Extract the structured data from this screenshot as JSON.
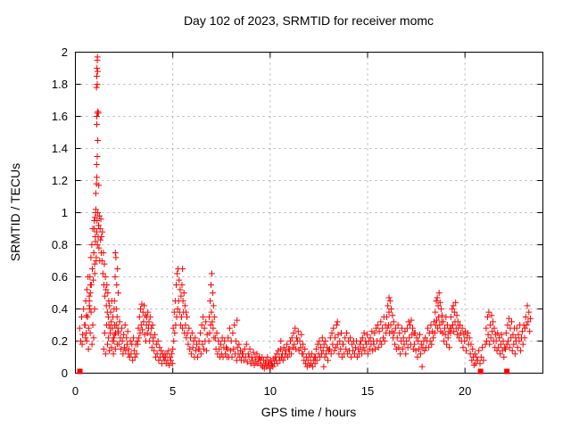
{
  "chart_data": {
    "type": "scatter",
    "title": "Day 102 of 2023, SRMTID for receiver momc",
    "xlabel": "GPS time / hours",
    "ylabel": "SRMTID / TECUs",
    "xlim": [
      0,
      24
    ],
    "ylim": [
      0,
      2
    ],
    "grid": "dashed",
    "legend": "none",
    "marker": "plus",
    "marker_color": "#ff0000",
    "grid_color": "#b0b0b0",
    "axis_color": "#000000",
    "background": "#ffffff",
    "x_ticks": {
      "values": [
        0,
        5,
        10,
        15,
        20
      ],
      "labels": [
        "0",
        "5",
        "10",
        "15",
        "20"
      ]
    },
    "y_ticks": {
      "values": [
        0,
        0.2,
        0.4,
        0.6,
        0.8,
        1,
        1.2,
        1.4,
        1.6,
        1.8,
        2
      ],
      "labels": [
        "0",
        "0.2",
        "0.4",
        "0.6",
        "0.8",
        "1",
        "1.2",
        "1.4",
        "1.6",
        "1.8",
        "2"
      ]
    },
    "runs": [
      {
        "x0": 0.22,
        "dx": 0.05,
        "y": [
          0.28,
          0.2,
          0.35,
          0.24,
          0.4,
          0.3,
          0.22,
          0.36
        ]
      },
      {
        "x0": 0.5,
        "dx": 0.03,
        "y": [
          0.3,
          0.45,
          0.25,
          0.52,
          0.35,
          0.6,
          0.28,
          0.48,
          0.4,
          0.55
        ]
      },
      {
        "x0": 0.58,
        "dx": 0.045,
        "y": [
          0.2,
          0.35,
          0.15,
          0.42,
          0.25,
          0.38,
          0.18,
          0.3,
          0.22,
          0.4
        ]
      },
      {
        "x0": 0.72,
        "dx": 0.025,
        "y": [
          0.45,
          0.6,
          0.5,
          0.72,
          0.55,
          0.8,
          0.65,
          0.9,
          0.58,
          0.75,
          0.95,
          0.62,
          0.85,
          1.0,
          0.7,
          0.88
        ]
      },
      {
        "x0": 0.95,
        "dx": 0.02,
        "y": [
          0.75,
          0.9,
          0.68,
          0.97,
          0.82,
          1.02,
          0.72,
          0.88,
          0.95,
          0.8,
          1.0,
          0.85,
          0.92,
          0.78,
          0.98,
          0.7,
          0.9,
          0.83,
          0.96,
          0.75
        ]
      },
      {
        "x0": 1.34,
        "dx": 0.025,
        "y": [
          0.85,
          0.7,
          0.88,
          0.62,
          0.75,
          0.55,
          0.68,
          0.48,
          0.6,
          0.52,
          0.42,
          0.55,
          0.38,
          0.5,
          0.35,
          0.45
        ]
      },
      {
        "x0": 1.45,
        "dx": 0.05,
        "y": [
          0.15,
          0.25,
          0.12,
          0.3,
          0.18,
          0.22,
          0.14,
          0.28,
          0.16,
          0.2,
          0.12,
          0.24,
          0.15,
          0.3,
          0.18,
          0.26
        ]
      },
      {
        "x0": 1.72,
        "dx": 0.03,
        "y": [
          0.3,
          0.42,
          0.25,
          0.38,
          0.32,
          0.45,
          0.28,
          0.35,
          0.22,
          0.4
        ]
      },
      {
        "x0": 1.98,
        "dx": 0.02,
        "y": [
          0.2,
          0.45,
          0.3,
          0.6,
          0.25,
          0.72,
          0.4,
          0.55,
          0.35,
          0.65,
          0.28,
          0.5
        ]
      },
      {
        "x0": 2.2,
        "dx": 0.035,
        "y": [
          0.25,
          0.18,
          0.32,
          0.22,
          0.15,
          0.28,
          0.2,
          0.12,
          0.24,
          0.16,
          0.3,
          0.14,
          0.22,
          0.18,
          0.26,
          0.12
        ]
      },
      {
        "x0": 2.74,
        "dx": 0.04,
        "y": [
          0.15,
          0.1,
          0.2,
          0.12,
          0.18,
          0.08,
          0.22,
          0.14,
          0.1,
          0.18,
          0.12,
          0.2
        ]
      },
      {
        "x0": 3.2,
        "dx": 0.03,
        "y": [
          0.18,
          0.28,
          0.22,
          0.35,
          0.25,
          0.4,
          0.3,
          0.43,
          0.27,
          0.38,
          0.32,
          0.42,
          0.24,
          0.36,
          0.2,
          0.3
        ]
      },
      {
        "x0": 3.66,
        "dx": 0.03,
        "y": [
          0.35,
          0.25,
          0.38,
          0.28,
          0.32,
          0.2,
          0.35,
          0.24,
          0.28,
          0.16,
          0.3,
          0.22
        ]
      },
      {
        "x0": 4.0,
        "dx": 0.04,
        "y": [
          0.2,
          0.14,
          0.24,
          0.1,
          0.18,
          0.12,
          0.2,
          0.08,
          0.16,
          0.1,
          0.14,
          0.06,
          0.12,
          0.1,
          0.08,
          0.12
        ]
      },
      {
        "x0": 4.62,
        "dx": 0.04,
        "y": [
          0.1,
          0.06,
          0.12,
          0.08,
          0.14,
          0.05,
          0.1,
          0.08,
          0.12,
          0.06
        ]
      },
      {
        "x0": 5.0,
        "dx": 0.025,
        "y": [
          0.15,
          0.28,
          0.2,
          0.38,
          0.25,
          0.45,
          0.3,
          0.55,
          0.35,
          0.62,
          0.4,
          0.65,
          0.45,
          0.58,
          0.38,
          0.52
        ]
      },
      {
        "x0": 5.4,
        "dx": 0.025,
        "y": [
          0.3,
          0.48,
          0.35,
          0.55,
          0.28,
          0.45,
          0.38,
          0.5,
          0.25,
          0.42,
          0.3,
          0.38,
          0.22,
          0.35
        ]
      },
      {
        "x0": 5.75,
        "dx": 0.04,
        "y": [
          0.25,
          0.18,
          0.28,
          0.15,
          0.22,
          0.12,
          0.25,
          0.16,
          0.2,
          0.1,
          0.22,
          0.14,
          0.18,
          0.1,
          0.15,
          0.2
        ]
      },
      {
        "x0": 6.38,
        "dx": 0.035,
        "y": [
          0.15,
          0.25,
          0.12,
          0.3,
          0.18,
          0.35,
          0.15,
          0.28,
          0.2,
          0.32,
          0.14,
          0.24
        ]
      },
      {
        "x0": 6.85,
        "dx": 0.022,
        "y": [
          0.2,
          0.35,
          0.25,
          0.45,
          0.3,
          0.55,
          0.38,
          0.62,
          0.32,
          0.5,
          0.28,
          0.42,
          0.22,
          0.35
        ]
      },
      {
        "x0": 7.18,
        "dx": 0.04,
        "y": [
          0.22,
          0.15,
          0.25,
          0.12,
          0.2,
          0.15,
          0.1,
          0.18,
          0.12,
          0.22,
          0.1,
          0.16,
          0.2,
          0.12,
          0.16,
          0.1
        ]
      },
      {
        "x0": 7.8,
        "dx": 0.04,
        "y": [
          0.15,
          0.22,
          0.1,
          0.28,
          0.14,
          0.2,
          0.1,
          0.25,
          0.15,
          0.3,
          0.12,
          0.2,
          0.08,
          0.16,
          0.12,
          0.18,
          0.1,
          0.14,
          0.08,
          0.12
        ]
      },
      {
        "x0": 8.6,
        "dx": 0.045,
        "y": [
          0.12,
          0.08,
          0.15,
          0.1,
          0.18,
          0.07,
          0.12,
          0.1,
          0.15,
          0.06,
          0.1,
          0.08,
          0.13,
          0.05,
          0.1,
          0.07,
          0.12,
          0.06,
          0.09,
          0.1
        ]
      },
      {
        "x0": 9.5,
        "dx": 0.04,
        "y": [
          0.08,
          0.05,
          0.1,
          0.04,
          0.08,
          0.03,
          0.06,
          0.08,
          0.04,
          0.1,
          0.05,
          0.07,
          0.03,
          0.08,
          0.05,
          0.06,
          0.04,
          0.09,
          0.06,
          0.1
        ]
      },
      {
        "x0": 10.3,
        "dx": 0.04,
        "y": [
          0.08,
          0.12,
          0.06,
          0.14,
          0.1,
          0.08,
          0.15,
          0.1,
          0.12,
          0.08,
          0.16,
          0.1,
          0.14,
          0.12,
          0.18,
          0.1,
          0.15,
          0.12
        ]
      },
      {
        "x0": 11.0,
        "dx": 0.04,
        "y": [
          0.15,
          0.2,
          0.12,
          0.22,
          0.16,
          0.25,
          0.18,
          0.28,
          0.15,
          0.22,
          0.2,
          0.26,
          0.14,
          0.2,
          0.16,
          0.24,
          0.12,
          0.18
        ]
      },
      {
        "x0": 11.7,
        "dx": 0.04,
        "y": [
          0.12,
          0.08,
          0.15,
          0.06,
          0.1,
          0.04,
          0.08,
          0.12,
          0.05,
          0.1,
          0.06,
          0.12,
          0.04,
          0.08,
          0.1,
          0.06
        ]
      },
      {
        "x0": 12.32,
        "dx": 0.04,
        "y": [
          0.1,
          0.15,
          0.08,
          0.18,
          0.12,
          0.2,
          0.1,
          0.16,
          0.12,
          0.22,
          0.14,
          0.18,
          0.1,
          0.2,
          0.12,
          0.16,
          0.08,
          0.14
        ]
      },
      {
        "x0": 13.05,
        "dx": 0.04,
        "y": [
          0.15,
          0.22,
          0.12,
          0.25,
          0.18,
          0.28,
          0.14,
          0.22,
          0.16,
          0.3,
          0.18,
          0.24,
          0.12,
          0.2,
          0.15,
          0.25,
          0.1,
          0.18
        ]
      },
      {
        "x0": 13.75,
        "dx": 0.045,
        "y": [
          0.18,
          0.12,
          0.22,
          0.15,
          0.25,
          0.12,
          0.2,
          0.14,
          0.22,
          0.1,
          0.18,
          0.14,
          0.2,
          0.12,
          0.16,
          0.2,
          0.1,
          0.15,
          0.12,
          0.18
        ]
      },
      {
        "x0": 14.62,
        "dx": 0.04,
        "y": [
          0.15,
          0.2,
          0.12,
          0.22,
          0.16,
          0.25,
          0.14,
          0.2,
          0.18,
          0.24,
          0.12,
          0.2,
          0.15,
          0.22,
          0.18,
          0.26,
          0.14,
          0.2
        ]
      },
      {
        "x0": 15.32,
        "dx": 0.04,
        "y": [
          0.18,
          0.25,
          0.15,
          0.28,
          0.2,
          0.3,
          0.16,
          0.26,
          0.2,
          0.32,
          0.18,
          0.28,
          0.22,
          0.35,
          0.2,
          0.3
        ]
      },
      {
        "x0": 15.95,
        "dx": 0.03,
        "y": [
          0.25,
          0.35,
          0.28,
          0.42,
          0.3,
          0.38,
          0.25,
          0.45,
          0.3,
          0.4,
          0.26,
          0.36,
          0.22,
          0.32
        ]
      },
      {
        "x0": 16.36,
        "dx": 0.04,
        "y": [
          0.25,
          0.18,
          0.28,
          0.15,
          0.22,
          0.3,
          0.16,
          0.25,
          0.12,
          0.2,
          0.28,
          0.15,
          0.22,
          0.18,
          0.26,
          0.12
        ]
      },
      {
        "x0": 17.0,
        "dx": 0.035,
        "y": [
          0.2,
          0.28,
          0.16,
          0.32,
          0.22,
          0.3,
          0.18,
          0.33,
          0.24,
          0.28,
          0.15,
          0.25
        ]
      },
      {
        "x0": 17.4,
        "dx": 0.04,
        "y": [
          0.18,
          0.25,
          0.14,
          0.22,
          0.1,
          0.2,
          0.15,
          0.24,
          0.12,
          0.18,
          0.04,
          0.16,
          0.2,
          0.14,
          0.22,
          0.16
        ]
      },
      {
        "x0": 18.05,
        "dx": 0.04,
        "y": [
          0.2,
          0.28,
          0.16,
          0.25,
          0.2,
          0.3,
          0.18,
          0.26,
          0.22,
          0.32
        ]
      },
      {
        "x0": 18.45,
        "dx": 0.025,
        "y": [
          0.25,
          0.38,
          0.3,
          0.45,
          0.33,
          0.47,
          0.28,
          0.42,
          0.35,
          0.5,
          0.3,
          0.44,
          0.26,
          0.4,
          0.32,
          0.36
        ]
      },
      {
        "x0": 18.85,
        "dx": 0.035,
        "y": [
          0.25,
          0.32,
          0.2,
          0.28,
          0.24,
          0.35,
          0.18,
          0.3,
          0.22,
          0.26,
          0.16,
          0.28
        ]
      },
      {
        "x0": 19.25,
        "dx": 0.03,
        "y": [
          0.25,
          0.35,
          0.28,
          0.4,
          0.3,
          0.42,
          0.26,
          0.38,
          0.32,
          0.44,
          0.28,
          0.36,
          0.24,
          0.32
        ]
      },
      {
        "x0": 19.66,
        "dx": 0.04,
        "y": [
          0.28,
          0.22,
          0.3,
          0.25,
          0.2,
          0.28,
          0.16,
          0.24,
          0.2,
          0.26,
          0.14,
          0.22
        ]
      },
      {
        "x0": 20.15,
        "dx": 0.04,
        "y": [
          0.25,
          0.18,
          0.22,
          0.12,
          0.18,
          0.08,
          0.15,
          0.1,
          0.05,
          0.12,
          0.06,
          0.1
        ]
      },
      {
        "x0": 20.65,
        "dx": 0.06,
        "y": [
          0.08,
          0.14,
          0.06,
          0.1,
          0.16,
          0.08
        ]
      },
      {
        "x0": 21.05,
        "dx": 0.035,
        "y": [
          0.18,
          0.28,
          0.2,
          0.35,
          0.24,
          0.38,
          0.18,
          0.3,
          0.22,
          0.36,
          0.26,
          0.32,
          0.2,
          0.28,
          0.16,
          0.24
        ]
      },
      {
        "x0": 21.6,
        "dx": 0.04,
        "y": [
          0.2,
          0.14,
          0.25,
          0.16,
          0.22,
          0.12,
          0.18,
          0.24,
          0.14,
          0.2,
          0.1,
          0.16
        ]
      },
      {
        "x0": 22.08,
        "dx": 0.035,
        "y": [
          0.15,
          0.25,
          0.18,
          0.3,
          0.2,
          0.34,
          0.16,
          0.28,
          0.22,
          0.32,
          0.14,
          0.24,
          0.18,
          0.28,
          0.12,
          0.22
        ]
      },
      {
        "x0": 22.62,
        "dx": 0.04,
        "y": [
          0.2,
          0.28,
          0.16,
          0.24,
          0.2,
          0.3,
          0.14,
          0.22,
          0.26,
          0.18,
          0.3,
          0.22
        ]
      },
      {
        "x0": 23.08,
        "dx": 0.04,
        "y": [
          0.28,
          0.35,
          0.3,
          0.42,
          0.32,
          0.38,
          0.26,
          0.34
        ]
      }
    ],
    "outliers": [
      [
        1.05,
        1.12
      ],
      [
        1.1,
        1.22
      ],
      [
        1.08,
        1.18
      ],
      [
        1.12,
        1.35
      ],
      [
        1.15,
        1.45
      ],
      [
        1.1,
        1.55
      ],
      [
        1.13,
        1.62
      ],
      [
        1.1,
        1.6
      ],
      [
        1.16,
        1.63
      ],
      [
        1.08,
        1.78
      ],
      [
        1.12,
        1.8
      ],
      [
        1.1,
        1.85
      ],
      [
        1.14,
        1.88
      ],
      [
        1.11,
        1.9
      ],
      [
        1.13,
        1.97
      ],
      [
        1.12,
        1.95
      ],
      [
        1.09,
        1.3
      ],
      [
        1.2,
        1.17
      ],
      [
        1.18,
        1.62
      ],
      [
        2.05,
        0.75
      ],
      [
        5.5,
        0.65
      ],
      [
        7.0,
        0.62
      ],
      [
        8.3,
        0.33
      ],
      [
        10.55,
        0.2
      ],
      [
        12.75,
        0.04
      ],
      [
        13.45,
        0.32
      ],
      [
        16.1,
        0.47
      ],
      [
        17.8,
        0.04
      ],
      [
        23.2,
        0.42
      ],
      [
        0.35,
        0.18
      ]
    ],
    "zero_markers": [
      [
        0.23,
        0
      ],
      [
        20.8,
        0
      ],
      [
        22.15,
        0
      ]
    ],
    "zero_marker_shape": "filled-square"
  }
}
